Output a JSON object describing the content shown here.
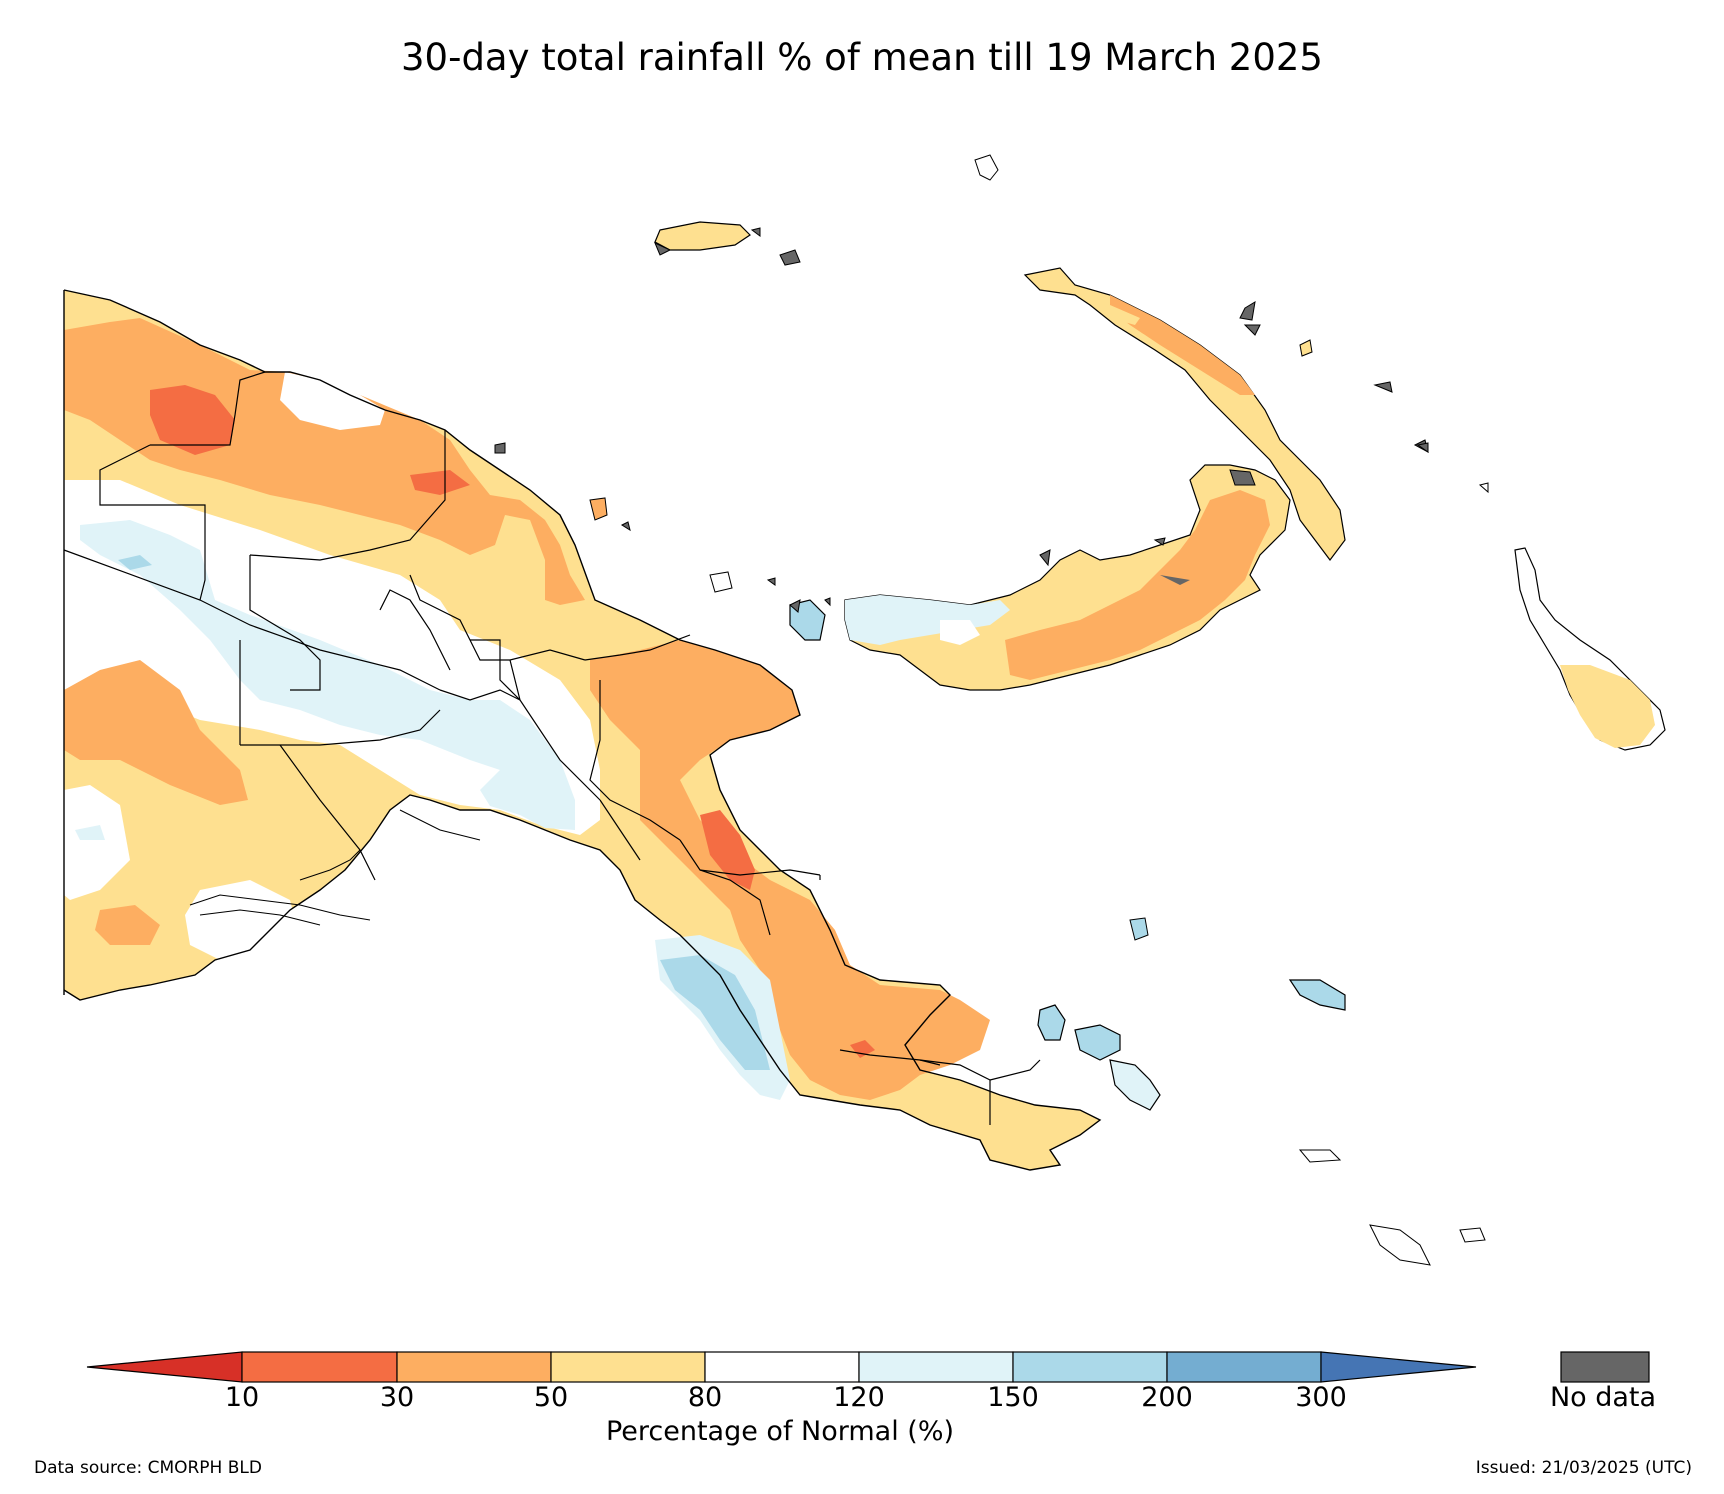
{
  "title": "30-day total rainfall % of mean till 19 March 2025",
  "colorbar": {
    "label": "Percentage of Normal (%)",
    "ticks": [
      "10",
      "30",
      "50",
      "80",
      "120",
      "150",
      "200",
      "300"
    ],
    "bins": [
      {
        "range": "<10",
        "color": "#d73027"
      },
      {
        "range": "10-30",
        "color": "#f46d43"
      },
      {
        "range": "30-50",
        "color": "#fdae61"
      },
      {
        "range": "50-80",
        "color": "#fee090"
      },
      {
        "range": "80-120",
        "color": "#ffffff"
      },
      {
        "range": "120-150",
        "color": "#e0f3f8"
      },
      {
        "range": "150-200",
        "color": "#abd9e9"
      },
      {
        "range": "200-300",
        "color": "#74add1"
      },
      {
        "range": ">300",
        "color": "#4575b4"
      }
    ],
    "extend": "both"
  },
  "no_data": {
    "label": "No data",
    "color": "#666666"
  },
  "source": "Data source: CMORPH BLD",
  "issued": "Issued: 21/03/2025 (UTC)"
}
